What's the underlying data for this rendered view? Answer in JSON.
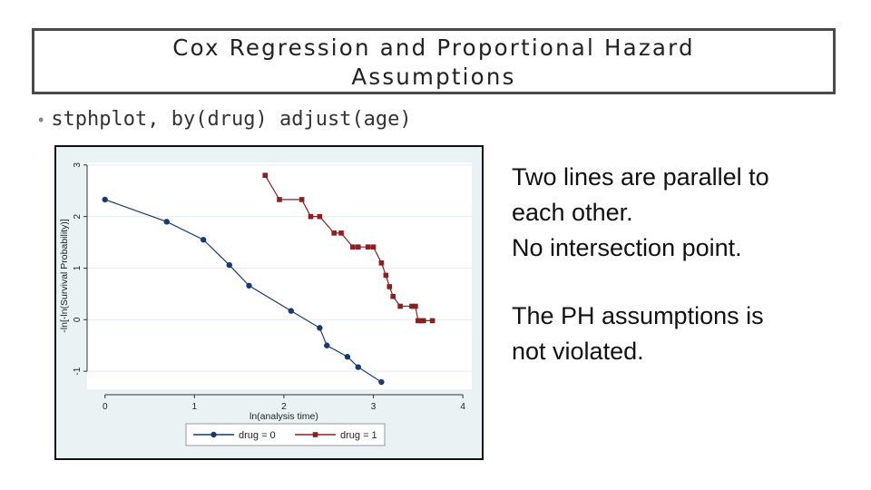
{
  "slide": {
    "title_line1": "Cox Regression and Proportional Hazard",
    "title_line2": "Assumptions",
    "bullet_dot": "•",
    "bullet_text": "stphplot, by(drug) adjust(age)",
    "notes": [
      [
        "Two lines are parallel to",
        "each other.",
        "No intersection point."
      ],
      [
        "The PH assumptions is",
        "not violated."
      ]
    ]
  },
  "colors": {
    "series0": "#1a3a6e",
    "series1": "#8b2020",
    "plot_bg": "#ffffff",
    "outer_bg": "#eaf2f3",
    "grid": "#e4ecef",
    "title_border": "#4a4a4a"
  },
  "chart_data": {
    "type": "line",
    "xlabel": "ln(analysis time)",
    "ylabel": "-ln[-ln(Survival Probability)]",
    "xlim": [
      -0.2,
      4.1
    ],
    "ylim": [
      -1.35,
      3.05
    ],
    "xticks": [
      0,
      1,
      2,
      3,
      4
    ],
    "yticks": [
      -1,
      0,
      1,
      2,
      3
    ],
    "grid": true,
    "legend_position": "bottom",
    "series": [
      {
        "name": "drug = 0",
        "marker": "circle",
        "points": [
          [
            0,
            2.33
          ],
          [
            0.69,
            1.9
          ],
          [
            1.1,
            1.55
          ],
          [
            1.39,
            1.06
          ],
          [
            1.61,
            0.66
          ],
          [
            2.08,
            0.17
          ],
          [
            2.4,
            -0.16
          ],
          [
            2.48,
            -0.5
          ],
          [
            2.71,
            -0.72
          ],
          [
            2.83,
            -0.92
          ],
          [
            3.09,
            -1.21
          ]
        ]
      },
      {
        "name": "drug = 1",
        "marker": "square",
        "points": [
          [
            1.79,
            2.8
          ],
          [
            1.95,
            2.33
          ],
          [
            2.2,
            2.33
          ],
          [
            2.3,
            2.0
          ],
          [
            2.4,
            2.0
          ],
          [
            2.56,
            1.68
          ],
          [
            2.64,
            1.68
          ],
          [
            2.77,
            1.41
          ],
          [
            2.83,
            1.41
          ],
          [
            2.94,
            1.41
          ],
          [
            3.0,
            1.41
          ],
          [
            3.09,
            1.1
          ],
          [
            3.14,
            0.86
          ],
          [
            3.18,
            0.64
          ],
          [
            3.22,
            0.45
          ],
          [
            3.3,
            0.26
          ],
          [
            3.43,
            0.26
          ],
          [
            3.47,
            0.26
          ],
          [
            3.5,
            -0.02
          ],
          [
            3.53,
            -0.02
          ],
          [
            3.56,
            -0.02
          ],
          [
            3.66,
            -0.02
          ]
        ]
      }
    ]
  }
}
